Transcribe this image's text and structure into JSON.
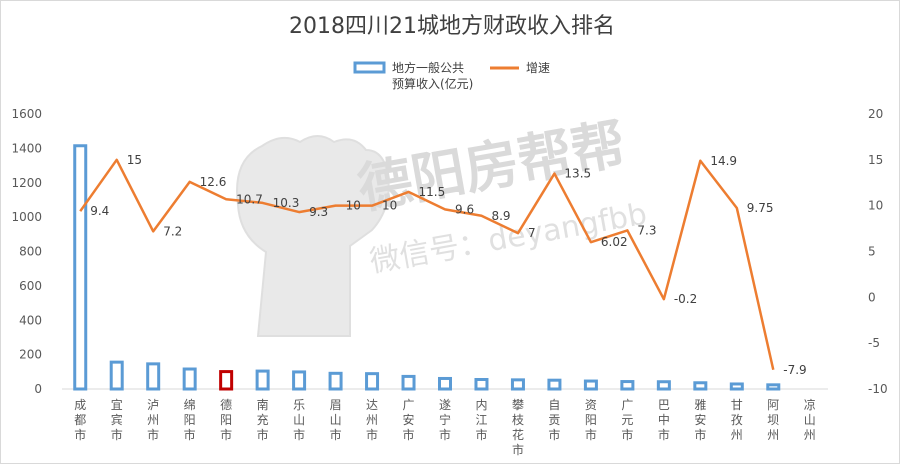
{
  "chart_data": {
    "type": "bar",
    "title": "2018四川21城地方财政收入排名",
    "watermark": {
      "brand": "德阳房帮帮",
      "wechat": "微信号：deyangfbb"
    },
    "legend": {
      "position": "top-center",
      "bar_label_line1": "地方一般公共",
      "bar_label_line2": "预算收入(亿元)",
      "line_label": "增速"
    },
    "categories": [
      "成都市",
      "宜宾市",
      "泸州市",
      "绵阳市",
      "德阳市",
      "南充市",
      "乐山市",
      "眉山市",
      "达州市",
      "广安市",
      "遂宁市",
      "内江市",
      "攀枝花市",
      "自贡市",
      "资阳市",
      "广元市",
      "巴中市",
      "雅安市",
      "甘孜州",
      "阿坝州",
      "凉山州"
    ],
    "series": [
      {
        "name": "地方一般公共预算收入(亿元)",
        "type": "bar",
        "axis": "left",
        "color": "#5b9bd5",
        "highlight_color": "#c00000",
        "highlight_index": 4,
        "values": [
          1424,
          165,
          155,
          125,
          110,
          113,
          108,
          100,
          98,
          82,
          70,
          64,
          62,
          60,
          55,
          52,
          51,
          45,
          38,
          33,
          null
        ]
      },
      {
        "name": "增速",
        "type": "line",
        "axis": "right",
        "color": "#ed7d31",
        "values": [
          9.4,
          15,
          7.2,
          12.6,
          10.7,
          10.3,
          9.3,
          10,
          10,
          11.5,
          9.6,
          8.9,
          7,
          13.5,
          6.02,
          7.3,
          -0.2,
          14.9,
          9.75,
          -7.9,
          null
        ],
        "labels": [
          "9.4",
          "15",
          "7.2",
          "12.6",
          "10.7",
          "10.3",
          "9.3",
          "10",
          "10",
          "11.5",
          "9.6",
          "8.9",
          "7",
          "13.5",
          "6.02",
          "7.3",
          "-0.2",
          "14.9",
          "9.75",
          "-7.9",
          ""
        ]
      }
    ],
    "y_left": {
      "min": 0,
      "max": 1600,
      "ticks": [
        0,
        200,
        400,
        600,
        800,
        1000,
        1200,
        1400,
        1600
      ]
    },
    "y_right": {
      "min": -10,
      "max": 20,
      "ticks": [
        -10,
        -5,
        0,
        5,
        10,
        15,
        20
      ]
    },
    "grid": false
  }
}
